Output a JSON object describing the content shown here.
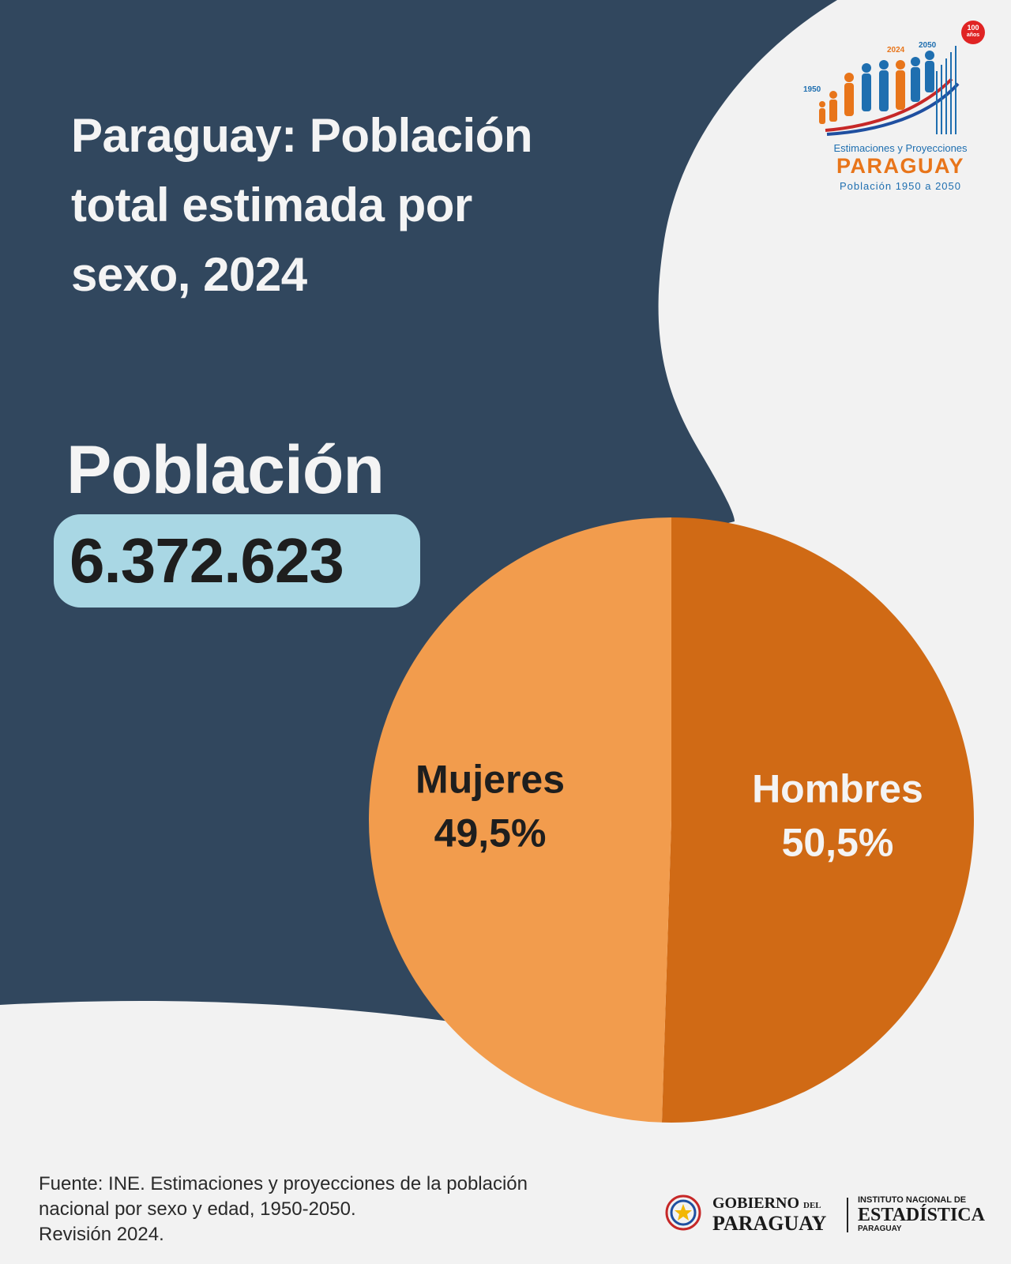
{
  "title": {
    "line1": "Paraguay: Población",
    "line2": "total estimada por",
    "line3": "sexo, 2024"
  },
  "population": {
    "label": "Población",
    "value": "6.372.623"
  },
  "colors": {
    "background_dark": "#31475e",
    "background_light": "#f2f2f2",
    "mujeres": "#f29c4d",
    "hombres": "#d06a15",
    "pill": "#a9d7e4"
  },
  "chart_data": {
    "type": "pie",
    "slices": [
      {
        "name": "Mujeres",
        "value": 49.5,
        "label": "49,5%",
        "color": "#f29c4d"
      },
      {
        "name": "Hombres",
        "value": 50.5,
        "label": "50,5%",
        "color": "#d06a15"
      }
    ]
  },
  "footer": {
    "line1": "Fuente: INE. Estimaciones y proyecciones de la población",
    "line2": "nacional por sexo y edad, 1950-2050.",
    "line3": "Revisión 2024."
  },
  "logo": {
    "year_1950": "1950",
    "year_2024": "2024",
    "year_2050": "2050",
    "badge_num": "100",
    "badge_text": "años",
    "line1": "Estimaciones y Proyecciones",
    "line2": "PARAGUAY",
    "line3": "Población 1950 a 2050"
  },
  "gov": {
    "gobierno": "GOBIERNO",
    "del": "DEL",
    "paraguay": "PARAGUAY",
    "ine_l1": "INSTITUTO NACIONAL DE",
    "ine_l2": "ESTADÍSTICA",
    "ine_l3": "PARAGUAY"
  }
}
